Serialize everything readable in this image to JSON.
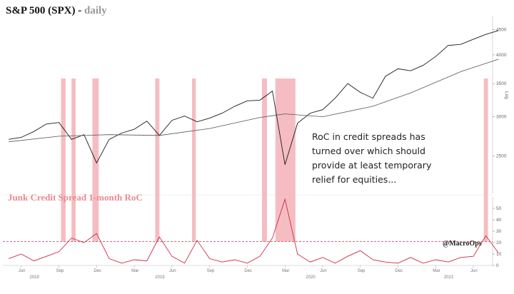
{
  "header": {
    "title_main": "S&P 500 (SPX) -",
    "title_freq": "daily"
  },
  "annotations": {
    "note_lines": [
      "RoC in credit spreads has",
      "turned over which should",
      "provide at least temporary",
      "relief for equities..."
    ],
    "indicator_label": "Junk Credit Spread 1-month RoC",
    "credit": "@MacroOps"
  },
  "colors": {
    "price": "#1a1a1a",
    "ma": "#555555",
    "roc": "#cc2b44",
    "highlight": "#f2a7ac",
    "threshold": "#d9304a",
    "title_freq": "#999999"
  },
  "chart_data": [
    {
      "type": "line",
      "title": "S&P 500 (SPX) - daily",
      "x_range": [
        "2018-05",
        "2021-08"
      ],
      "y_scale": "log",
      "ylim": [
        2100,
        4800
      ],
      "y_ticks": [
        {
          "value": 4500,
          "label": "4500"
        },
        {
          "value": 4000,
          "label": "4000"
        },
        {
          "value": 3500,
          "label": "3500"
        },
        {
          "value": 3000,
          "label": "3000"
        },
        {
          "value": 2500,
          "label": "2500"
        }
      ],
      "y_axis_label": "Log",
      "series": [
        {
          "role": "price",
          "x": [
            "2018-05",
            "2018-06",
            "2018-07",
            "2018-08",
            "2018-09",
            "2018-10",
            "2018-11",
            "2018-12",
            "2019-01",
            "2019-02",
            "2019-03",
            "2019-04",
            "2019-05",
            "2019-06",
            "2019-07",
            "2019-08",
            "2019-09",
            "2019-10",
            "2019-11",
            "2019-12",
            "2020-01",
            "2020-02",
            "2020-03",
            "2020-04",
            "2020-05",
            "2020-06",
            "2020-07",
            "2020-08",
            "2020-09",
            "2020-10",
            "2020-11",
            "2020-12",
            "2021-01",
            "2021-02",
            "2021-03",
            "2021-04",
            "2021-05",
            "2021-06",
            "2021-07",
            "2021-08"
          ],
          "values": [
            2700,
            2725,
            2800,
            2900,
            2920,
            2700,
            2760,
            2420,
            2700,
            2780,
            2830,
            2940,
            2750,
            2950,
            3010,
            2930,
            2980,
            3050,
            3150,
            3230,
            3240,
            3380,
            2400,
            2910,
            3050,
            3100,
            3270,
            3500,
            3360,
            3270,
            3620,
            3750,
            3715,
            3810,
            3970,
            4180,
            4200,
            4300,
            4400,
            4480
          ]
        },
        {
          "role": "moving-average",
          "x": [
            "2018-05",
            "2018-09",
            "2019-01",
            "2019-05",
            "2019-09",
            "2020-01",
            "2020-03",
            "2020-06",
            "2020-10",
            "2021-01",
            "2021-05",
            "2021-08"
          ],
          "values": [
            2670,
            2740,
            2760,
            2750,
            2840,
            2990,
            3040,
            3000,
            3150,
            3350,
            3700,
            3920
          ]
        }
      ]
    },
    {
      "type": "line",
      "title": "Junk Credit Spread 1-month RoC",
      "ylim": [
        0,
        60
      ],
      "y_ticks": [
        {
          "value": 50,
          "label": "50"
        },
        {
          "value": 40,
          "label": "40"
        },
        {
          "value": 30,
          "label": "30"
        },
        {
          "value": 20,
          "label": "20"
        },
        {
          "value": 10,
          "label": "10"
        },
        {
          "value": 0,
          "label": "0"
        }
      ],
      "threshold": 21,
      "x_tick_labels": [
        {
          "date": "2018-06",
          "label": "Jun"
        },
        {
          "date": "2018-09",
          "label": "Sep"
        },
        {
          "date": "2018-12",
          "label": "Dec"
        },
        {
          "date": "2019-03",
          "label": "Mar"
        },
        {
          "date": "2019-06",
          "label": "Jun"
        },
        {
          "date": "2019-09",
          "label": "Sep"
        },
        {
          "date": "2019-12",
          "label": "Dec"
        },
        {
          "date": "2020-03",
          "label": "Mar"
        },
        {
          "date": "2020-06",
          "label": "Jun"
        },
        {
          "date": "2020-09",
          "label": "Sep"
        },
        {
          "date": "2020-12",
          "label": "Dec"
        },
        {
          "date": "2021-03",
          "label": "Mar"
        },
        {
          "date": "2021-06",
          "label": "Jun"
        }
      ],
      "year_labels": [
        {
          "date": "2018-07",
          "label": "2018"
        },
        {
          "date": "2019-05",
          "label": "2019"
        },
        {
          "date": "2020-05",
          "label": "2020"
        },
        {
          "date": "2021-04",
          "label": "2021"
        }
      ],
      "series": [
        {
          "role": "roc",
          "x": [
            "2018-05",
            "2018-06",
            "2018-07",
            "2018-08",
            "2018-09",
            "2018-10",
            "2018-11",
            "2018-12",
            "2019-01",
            "2019-02",
            "2019-03",
            "2019-04",
            "2019-05",
            "2019-06",
            "2019-07",
            "2019-08",
            "2019-09",
            "2019-10",
            "2019-11",
            "2019-12",
            "2020-01",
            "2020-02",
            "2020-03",
            "2020-04",
            "2020-05",
            "2020-06",
            "2020-07",
            "2020-08",
            "2020-09",
            "2020-10",
            "2020-11",
            "2020-12",
            "2021-01",
            "2021-02",
            "2021-03",
            "2021-04",
            "2021-05",
            "2021-06",
            "2021-07",
            "2021-08"
          ],
          "values": [
            6,
            10,
            4,
            8,
            12,
            24,
            20,
            28,
            6,
            2,
            5,
            4,
            25,
            8,
            2,
            22,
            6,
            3,
            5,
            2,
            8,
            24,
            58,
            10,
            3,
            7,
            2,
            8,
            13,
            5,
            3,
            2,
            7,
            2,
            5,
            3,
            7,
            8,
            26,
            11
          ]
        }
      ],
      "highlight_periods": [
        [
          "2018-09-20",
          "2018-10-01"
        ],
        [
          "2018-10-15",
          "2018-10-25"
        ],
        [
          "2018-12-05",
          "2018-12-20"
        ],
        [
          "2019-05-05",
          "2019-05-15"
        ],
        [
          "2019-08-03",
          "2019-08-12"
        ],
        [
          "2020-01-20",
          "2020-02-02"
        ],
        [
          "2020-02-22",
          "2020-04-10"
        ],
        [
          "2021-07-10",
          "2021-07-20"
        ]
      ]
    }
  ]
}
